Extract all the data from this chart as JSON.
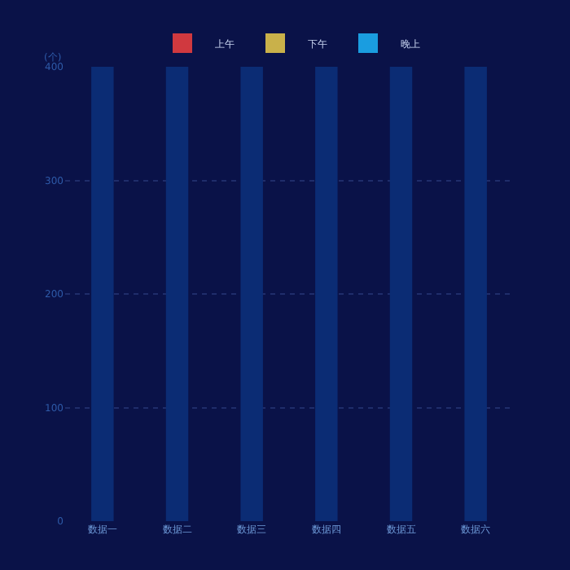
{
  "chart_data": {
    "type": "bar",
    "ylabel": "(个)",
    "categories": [
      "数据一",
      "数据二",
      "数据三",
      "数据四",
      "数据五",
      "数据六"
    ],
    "series": [
      {
        "name": "上午",
        "color": "#d0393f",
        "values": [
          null,
          null,
          null,
          null,
          null,
          null
        ]
      },
      {
        "name": "下午",
        "color": "#c9b14a",
        "values": [
          null,
          null,
          null,
          null,
          null,
          null
        ]
      },
      {
        "name": "晚上",
        "color": "#1a9de0",
        "values": [
          null,
          null,
          null,
          null,
          null,
          null
        ]
      },
      {
        "color": "#0b2c74",
        "values": [
          400,
          400,
          400,
          400,
          400,
          400
        ]
      }
    ],
    "ylim": [
      0,
      400
    ],
    "yticks": [
      0,
      100,
      200,
      300,
      400
    ],
    "grid": "y",
    "legend": "top"
  }
}
